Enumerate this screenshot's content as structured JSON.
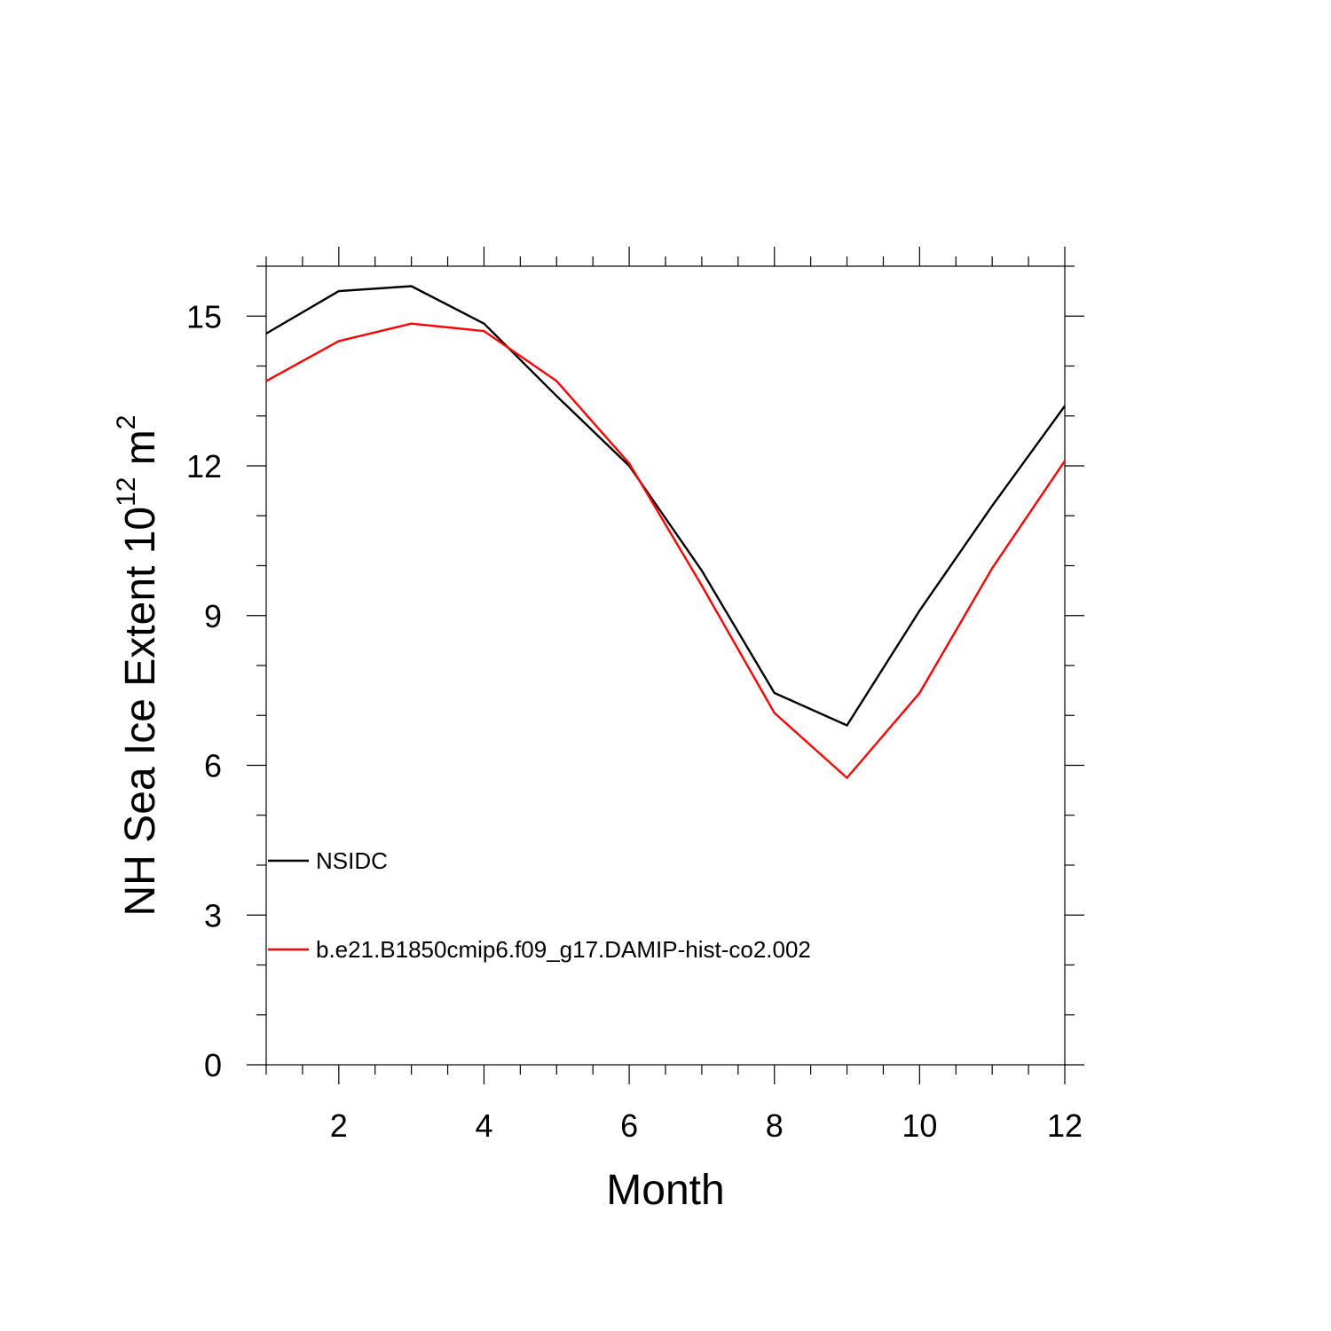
{
  "chart_data": {
    "type": "line",
    "title": "",
    "xlabel": "Month",
    "ylabel": {
      "base": "NH Sea Ice Extent 10",
      "sup1": "12",
      "mid": " m",
      "sup2": "2"
    },
    "xlim": [
      1,
      12
    ],
    "ylim": [
      0,
      16
    ],
    "x_major_ticks": [
      2,
      4,
      6,
      8,
      10,
      12
    ],
    "x_tick_labels": [
      "2",
      "4",
      "6",
      "8",
      "10",
      "12"
    ],
    "x_minor_step": 0.5,
    "y_major_ticks": [
      0,
      3,
      6,
      9,
      12,
      15
    ],
    "y_tick_labels": [
      "0",
      "3",
      "6",
      "9",
      "12",
      "15"
    ],
    "y_minor_step": 1,
    "grid": false,
    "legend_position": "lower-left",
    "x": [
      1,
      2,
      3,
      4,
      5,
      6,
      7,
      8,
      9,
      10,
      11,
      12
    ],
    "series": [
      {
        "name": "NSIDC",
        "color": "#000000",
        "values": [
          14.65,
          15.5,
          15.6,
          14.85,
          13.4,
          12.0,
          9.9,
          7.45,
          6.8,
          9.1,
          11.2,
          13.2
        ]
      },
      {
        "name": "b.e21.B1850cmip6.f09_g17.DAMIP-hist-co2.002",
        "color": "#ff0000",
        "values": [
          13.7,
          14.5,
          14.85,
          14.7,
          13.7,
          12.05,
          9.6,
          7.05,
          5.75,
          7.45,
          9.95,
          12.1
        ]
      }
    ]
  }
}
